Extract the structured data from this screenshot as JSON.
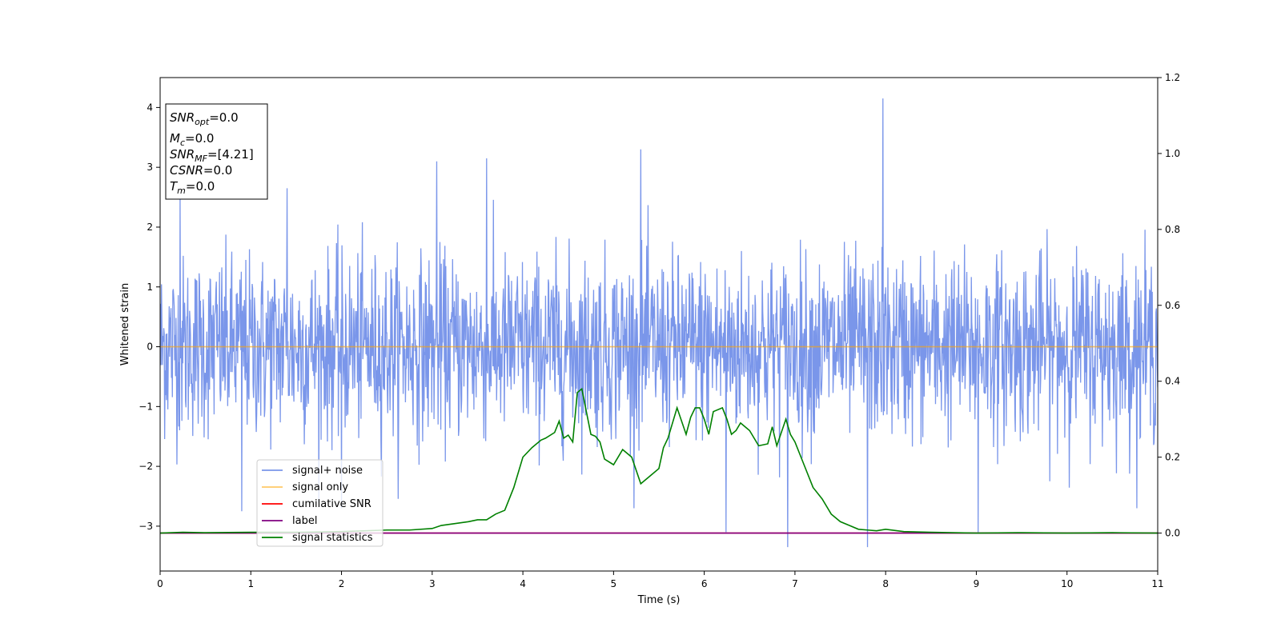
{
  "chart_data": {
    "type": "line",
    "xlabel": "Time (s)",
    "ylabel": "Whitened strain",
    "xlim": [
      0,
      11
    ],
    "ylim_left": [
      -3.75,
      4.5
    ],
    "ylim_right": [
      -0.1,
      1.2
    ],
    "x_ticks": [
      0,
      1,
      2,
      3,
      4,
      5,
      6,
      7,
      8,
      9,
      10,
      11
    ],
    "y_left_ticks": [
      -3,
      -2,
      -1,
      0,
      1,
      2,
      3,
      4
    ],
    "y_right_ticks": [
      0.0,
      0.2,
      0.4,
      0.6,
      0.8,
      1.0,
      1.2
    ],
    "grid": false,
    "legend_position": "lower-left",
    "info_box": {
      "lines": [
        {
          "base": "SNR",
          "sub": "opt",
          "value": "=0.0"
        },
        {
          "base": "M",
          "sub": "c",
          "value": "=0.0"
        },
        {
          "base": "SNR",
          "sub": "MF",
          "value": "=[4.21]"
        },
        {
          "base": "CSNR",
          "sub": "",
          "value": "=0.0"
        },
        {
          "base": "T",
          "sub": "m",
          "value": "=0.0"
        }
      ]
    },
    "series": [
      {
        "name": "signal+ noise",
        "axis": "left",
        "color": "#4169e1",
        "kind": "noise",
        "sample_rate_hz": 200,
        "noise_std": 0.75,
        "notable_peaks": [
          {
            "x": 0.22,
            "y": 2.55
          },
          {
            "x": 1.4,
            "y": 2.65
          },
          {
            "x": 3.05,
            "y": 3.1
          },
          {
            "x": 3.6,
            "y": 3.15
          },
          {
            "x": 5.3,
            "y": 3.3
          },
          {
            "x": 7.97,
            "y": 4.15
          },
          {
            "x": 6.24,
            "y": -3.1
          },
          {
            "x": 6.92,
            "y": -3.35
          },
          {
            "x": 7.8,
            "y": -3.35
          },
          {
            "x": 9.02,
            "y": -3.1
          },
          {
            "x": 0.9,
            "y": -2.75
          },
          {
            "x": 2.0,
            "y": -2.7
          }
        ]
      },
      {
        "name": "signal only",
        "axis": "left",
        "color": "#ffa500",
        "x": [
          0,
          11
        ],
        "y": [
          0,
          0
        ]
      },
      {
        "name": "cumilative SNR",
        "axis": "right",
        "color": "#ff0000",
        "x": [
          0,
          11
        ],
        "y": [
          0,
          0
        ]
      },
      {
        "name": "label",
        "axis": "right",
        "color": "#800080",
        "x": [
          0,
          11
        ],
        "y": [
          0,
          0
        ]
      },
      {
        "name": "signal statistics",
        "axis": "right",
        "color": "#008000",
        "x": [
          0,
          0.25,
          0.5,
          1.0,
          1.5,
          2.0,
          2.5,
          2.75,
          3.0,
          3.1,
          3.25,
          3.4,
          3.5,
          3.6,
          3.7,
          3.8,
          3.9,
          4.0,
          4.1,
          4.2,
          4.25,
          4.35,
          4.4,
          4.45,
          4.5,
          4.55,
          4.6,
          4.65,
          4.7,
          4.75,
          4.8,
          4.85,
          4.9,
          5.0,
          5.1,
          5.2,
          5.3,
          5.4,
          5.5,
          5.55,
          5.6,
          5.7,
          5.8,
          5.85,
          5.9,
          5.95,
          6.0,
          6.05,
          6.1,
          6.2,
          6.25,
          6.3,
          6.35,
          6.4,
          6.45,
          6.5,
          6.6,
          6.7,
          6.75,
          6.8,
          6.9,
          6.95,
          7.0,
          7.1,
          7.2,
          7.3,
          7.4,
          7.5,
          7.6,
          7.7,
          7.8,
          7.9,
          8.0,
          8.2,
          8.5,
          9.0,
          9.5,
          10.0,
          10.5,
          11.0
        ],
        "y": [
          0.0,
          0.002,
          0.001,
          0.002,
          0.002,
          0.004,
          0.008,
          0.008,
          0.012,
          0.02,
          0.025,
          0.03,
          0.035,
          0.035,
          0.05,
          0.06,
          0.12,
          0.2,
          0.225,
          0.245,
          0.25,
          0.265,
          0.295,
          0.25,
          0.258,
          0.24,
          0.37,
          0.38,
          0.32,
          0.26,
          0.255,
          0.24,
          0.195,
          0.18,
          0.22,
          0.2,
          0.13,
          0.15,
          0.17,
          0.225,
          0.25,
          0.33,
          0.26,
          0.305,
          0.33,
          0.33,
          0.3,
          0.26,
          0.32,
          0.33,
          0.3,
          0.26,
          0.27,
          0.29,
          0.28,
          0.27,
          0.23,
          0.235,
          0.28,
          0.23,
          0.3,
          0.26,
          0.24,
          0.18,
          0.12,
          0.09,
          0.05,
          0.03,
          0.02,
          0.01,
          0.008,
          0.006,
          0.01,
          0.004,
          0.002,
          0.0,
          0.001,
          0.0,
          0.001,
          0.0
        ]
      }
    ]
  }
}
